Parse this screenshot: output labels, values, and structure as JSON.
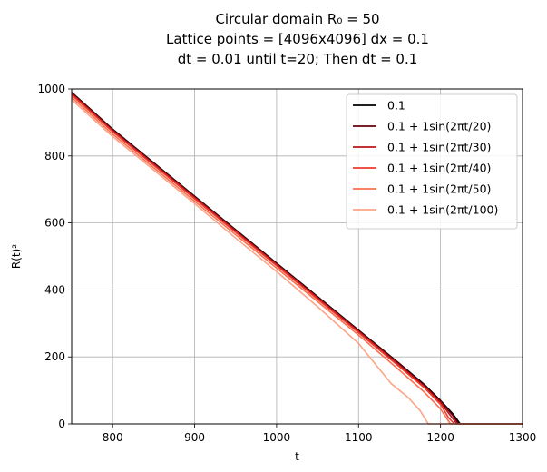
{
  "chart_data": {
    "type": "line",
    "title_lines": [
      "Circular domain R₀ = 50",
      "Lattice points = [4096x4096] dx = 0.1",
      "dt = 0.01 until t=20; Then dt = 0.1"
    ],
    "xlabel": "t",
    "ylabel": "R(t)²",
    "xlim": [
      750,
      1300
    ],
    "ylim": [
      0,
      1000
    ],
    "xticks": [
      800,
      900,
      1000,
      1100,
      1200,
      1300
    ],
    "yticks": [
      0,
      200,
      400,
      600,
      800,
      1000
    ],
    "grid": true,
    "legend_position": "top-right",
    "series": [
      {
        "name": "0.1",
        "color": "#000000",
        "x": [
          750,
          800,
          850,
          900,
          950,
          1000,
          1050,
          1100,
          1150,
          1180,
          1200,
          1215,
          1224,
          1300
        ],
        "y": [
          990,
          880,
          780,
          680,
          580,
          480,
          380,
          280,
          180,
          118,
          70,
          30,
          0,
          0
        ]
      },
      {
        "name": "0.1 + 1sin(2πt/20)",
        "color": "#67000d",
        "x": [
          750,
          800,
          850,
          900,
          950,
          1000,
          1050,
          1100,
          1150,
          1180,
          1200,
          1215,
          1222,
          1300
        ],
        "y": [
          988,
          878,
          778,
          678,
          578,
          478,
          378,
          278,
          178,
          115,
          68,
          25,
          0,
          0
        ]
      },
      {
        "name": "0.1 + 1sin(2πt/30)",
        "color": "#bb151a",
        "x": [
          750,
          800,
          850,
          900,
          950,
          1000,
          1050,
          1100,
          1150,
          1180,
          1200,
          1213,
          1220,
          1300
        ],
        "y": [
          986,
          876,
          776,
          676,
          576,
          476,
          376,
          276,
          175,
          112,
          64,
          22,
          0,
          0
        ]
      },
      {
        "name": "0.1 + 1sin(2πt/40)",
        "color": "#ef3c2d",
        "x": [
          750,
          800,
          850,
          900,
          950,
          1000,
          1050,
          1100,
          1150,
          1180,
          1200,
          1210,
          1217,
          1300
        ],
        "y": [
          982,
          872,
          772,
          672,
          572,
          472,
          372,
          272,
          170,
          108,
          58,
          18,
          0,
          0
        ]
      },
      {
        "name": "0.1 + 1sin(2πt/50)",
        "color": "#fb7050",
        "x": [
          750,
          800,
          850,
          900,
          950,
          1000,
          1050,
          1100,
          1150,
          1180,
          1200,
          1212,
          1300
        ],
        "y": [
          975,
          865,
          765,
          665,
          565,
          465,
          365,
          265,
          160,
          95,
          45,
          0,
          0
        ]
      },
      {
        "name": "0.1 + 1sin(2πt/100)",
        "color": "#fca486",
        "x": [
          750,
          800,
          850,
          900,
          950,
          1000,
          1050,
          1100,
          1120,
          1140,
          1160,
          1175,
          1185,
          1300
        ],
        "y": [
          968,
          858,
          758,
          658,
          555,
          455,
          350,
          240,
          180,
          120,
          80,
          40,
          0,
          0
        ]
      }
    ]
  }
}
